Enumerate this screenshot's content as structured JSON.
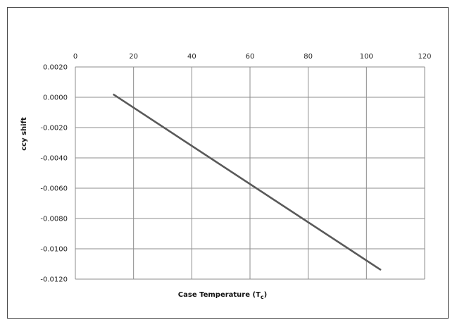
{
  "chart_data": {
    "type": "line",
    "title": "",
    "xlabel": "Case Temperature (T",
    "xlabel_subscript": "c",
    "xlabel_suffix": ")",
    "ylabel": "ccy shift",
    "x_ticks": [
      "0",
      "20",
      "40",
      "60",
      "80",
      "100",
      "120"
    ],
    "y_ticks": [
      "0.0020",
      "0.0000",
      "-0.0020",
      "-0.0040",
      "-0.0060",
      "-0.0080",
      "-0.0100",
      "-0.0120"
    ],
    "xlim": [
      0,
      120
    ],
    "ylim": [
      -0.012,
      0.002
    ],
    "x_tick_step": 20,
    "y_tick_step": 0.002,
    "x_axis_position": "top",
    "grid": true,
    "legend": "none",
    "series": [
      {
        "color": "#595959",
        "x": [
          13,
          105
        ],
        "y": [
          0.0002,
          -0.0114
        ]
      }
    ]
  }
}
